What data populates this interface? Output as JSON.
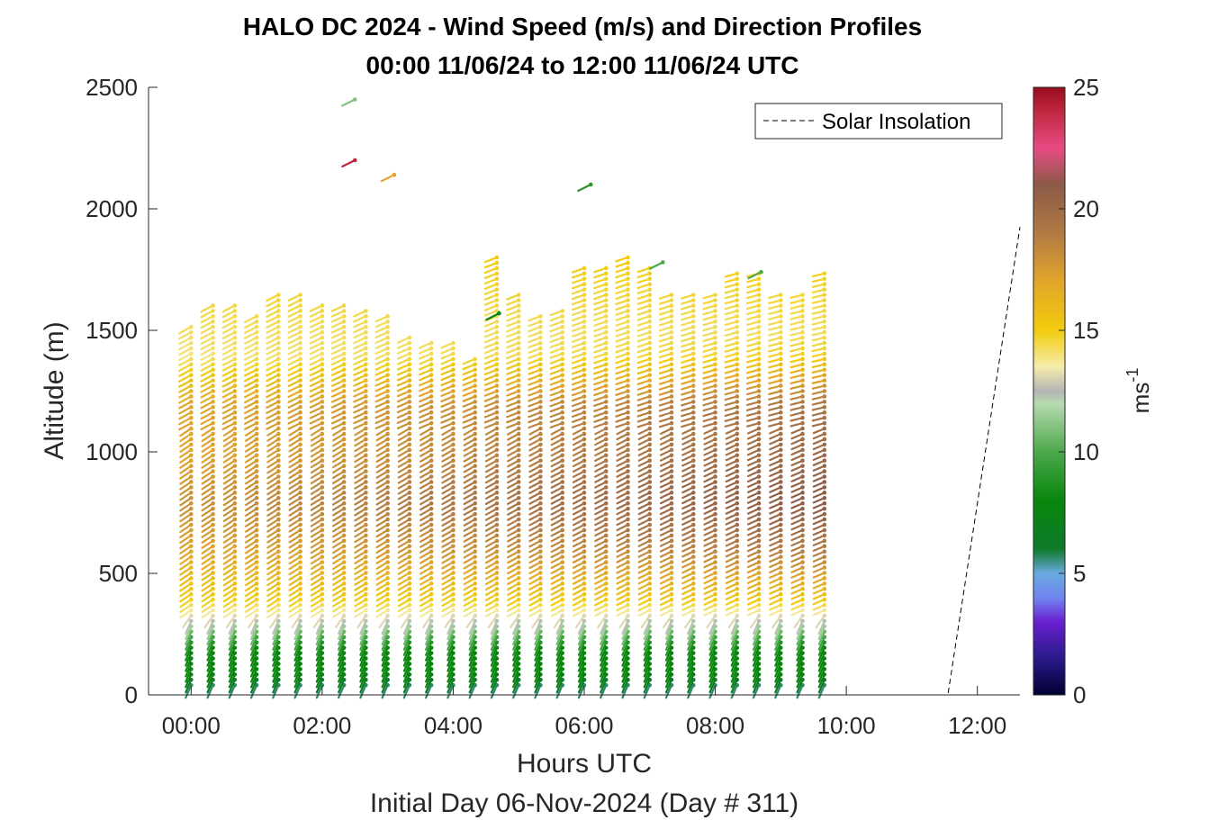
{
  "chart_data": {
    "type": "wind-barb-profile",
    "title_lines": [
      "HALO DC 2024 - Wind Speed (m/s) and Direction Profiles",
      "00:00 11/06/24 to 12:00 11/06/24  UTC"
    ],
    "xlabel": "Hours UTC",
    "footer": "Initial Day 06-Nov-2024 (Day # 311)",
    "ylabel": "Altitude (m)",
    "x_ticks": [
      "00:00",
      "02:00",
      "04:00",
      "06:00",
      "08:00",
      "10:00",
      "12:00"
    ],
    "x_tick_hours": [
      0,
      2,
      4,
      6,
      8,
      10,
      12
    ],
    "xlim_hours": [
      -0.65,
      12.65
    ],
    "y_ticks": [
      "0",
      "500",
      "1000",
      "1500",
      "2000",
      "2500"
    ],
    "y_tick_values": [
      0,
      500,
      1000,
      1500,
      2000,
      2500
    ],
    "ylim": [
      0,
      2500
    ],
    "colorbar": {
      "label": "ms",
      "label_exponent": "-1",
      "ticks": [
        "0",
        "5",
        "10",
        "15",
        "20",
        "25"
      ],
      "tick_values": [
        0,
        5,
        10,
        15,
        20,
        25
      ],
      "range": [
        0,
        25
      ]
    },
    "legend": {
      "label": "Solar Insolation",
      "placement": "top-right",
      "line_style": "dashed",
      "color": "#000000"
    },
    "solar_insolation": {
      "hours": [
        -0.65,
        11.55,
        12.65
      ],
      "relative_height": [
        0,
        0,
        0.77
      ]
    },
    "profiles": {
      "start_hour": 0.0,
      "interval_hours": 0.3333,
      "count": 30,
      "bottom_altitude_m": 40,
      "altitude_step_m": 22,
      "top_altitudes_m": [
        1530,
        1610,
        1610,
        1570,
        1660,
        1660,
        1610,
        1610,
        1590,
        1570,
        1480,
        1460,
        1450,
        1400,
        1820,
        1660,
        1570,
        1600,
        1770,
        1770,
        1820,
        1760,
        1660,
        1660,
        1660,
        1740,
        1740,
        1660,
        1660,
        1740
      ],
      "speed_profile_ms": {
        "altitudes_m": [
          0,
          60,
          100,
          200,
          320,
          400,
          600,
          800,
          1000,
          1200,
          1400,
          1800
        ],
        "speed_ms": [
          5,
          6,
          8,
          8,
          13,
          15,
          17,
          18,
          17,
          17,
          14,
          15
        ]
      },
      "upper_isolated_barbs": [
        {
          "hour": 2.5,
          "altitude_m": 2450,
          "speed_ms": 11
        },
        {
          "hour": 2.5,
          "altitude_m": 2200,
          "speed_ms": 24
        },
        {
          "hour": 3.1,
          "altitude_m": 2140,
          "speed_ms": 17
        },
        {
          "hour": 6.1,
          "altitude_m": 2100,
          "speed_ms": 9
        },
        {
          "hour": 4.7,
          "altitude_m": 1570,
          "speed_ms": 8
        },
        {
          "hour": 7.2,
          "altitude_m": 1780,
          "speed_ms": 10
        },
        {
          "hour": 8.7,
          "altitude_m": 1740,
          "speed_ms": 10
        }
      ]
    }
  },
  "colors": {
    "axis": "#262626",
    "colormap_stops": [
      [
        0,
        "#000033"
      ],
      [
        1.5,
        "#2a1a8a"
      ],
      [
        3,
        "#6a1fd0"
      ],
      [
        4,
        "#6f86f0"
      ],
      [
        5,
        "#6aa9e0"
      ],
      [
        6,
        "#0e7a2a"
      ],
      [
        8,
        "#08860c"
      ],
      [
        10,
        "#4ca84c"
      ],
      [
        12,
        "#b8dab0"
      ],
      [
        12.5,
        "#b4b4b4"
      ],
      [
        13.5,
        "#f6ecaa"
      ],
      [
        15,
        "#f2cc0c"
      ],
      [
        17,
        "#e2a52a"
      ],
      [
        19,
        "#b17a44"
      ],
      [
        21,
        "#8c5a48"
      ],
      [
        22.5,
        "#e84b84"
      ],
      [
        24,
        "#c0283f"
      ],
      [
        25,
        "#980a1e"
      ]
    ]
  }
}
